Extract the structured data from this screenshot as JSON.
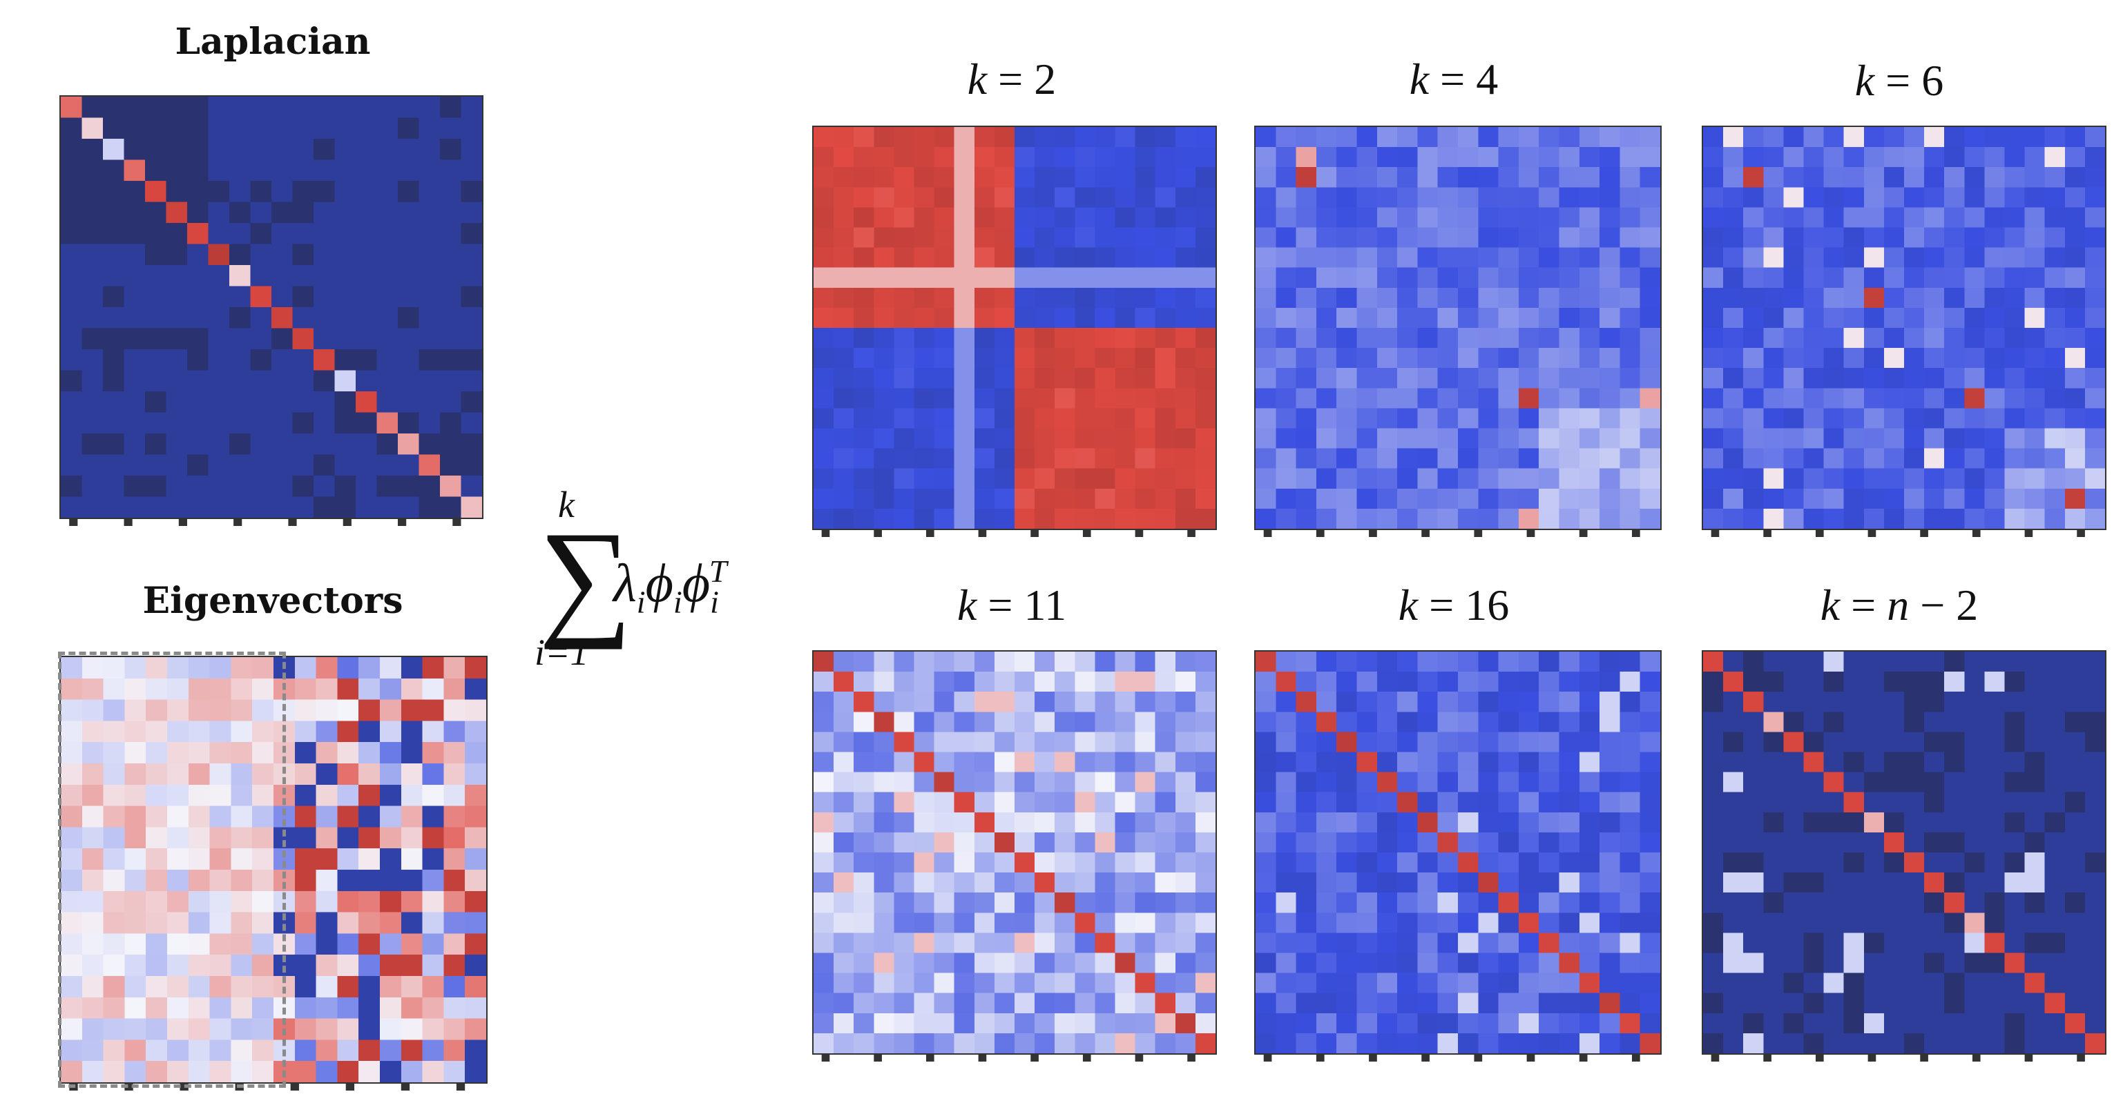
{
  "laplacian_title": "Laplacian",
  "eigenvectors_title": "Eigenvectors",
  "formula": {
    "upper": "k",
    "lower": "i=1",
    "term": "λ",
    "phi": "ϕ",
    "index": "i",
    "transpose": "T"
  },
  "panels": [
    {
      "lhs": "k",
      "eq": " = ",
      "rhs": "2"
    },
    {
      "lhs": "k",
      "eq": " = ",
      "rhs": "4"
    },
    {
      "lhs": "k",
      "eq": " = ",
      "rhs": "6"
    },
    {
      "lhs": "k",
      "eq": " = ",
      "rhs": "11"
    },
    {
      "lhs": "k",
      "eq": " = ",
      "rhs": "16"
    },
    {
      "lhs": "k",
      "eq": " = ",
      "rhs": "n − 2"
    }
  ],
  "colors": {
    "dark_navy": "#2b3a8f",
    "blue": "#3a4fe0",
    "light_blue": "#a8b4f5",
    "white": "#f4f4fb",
    "pink": "#f0a6a0",
    "red": "#e04a42",
    "dark_red": "#b23a36",
    "dashed_box": "#8a8a8a"
  }
}
